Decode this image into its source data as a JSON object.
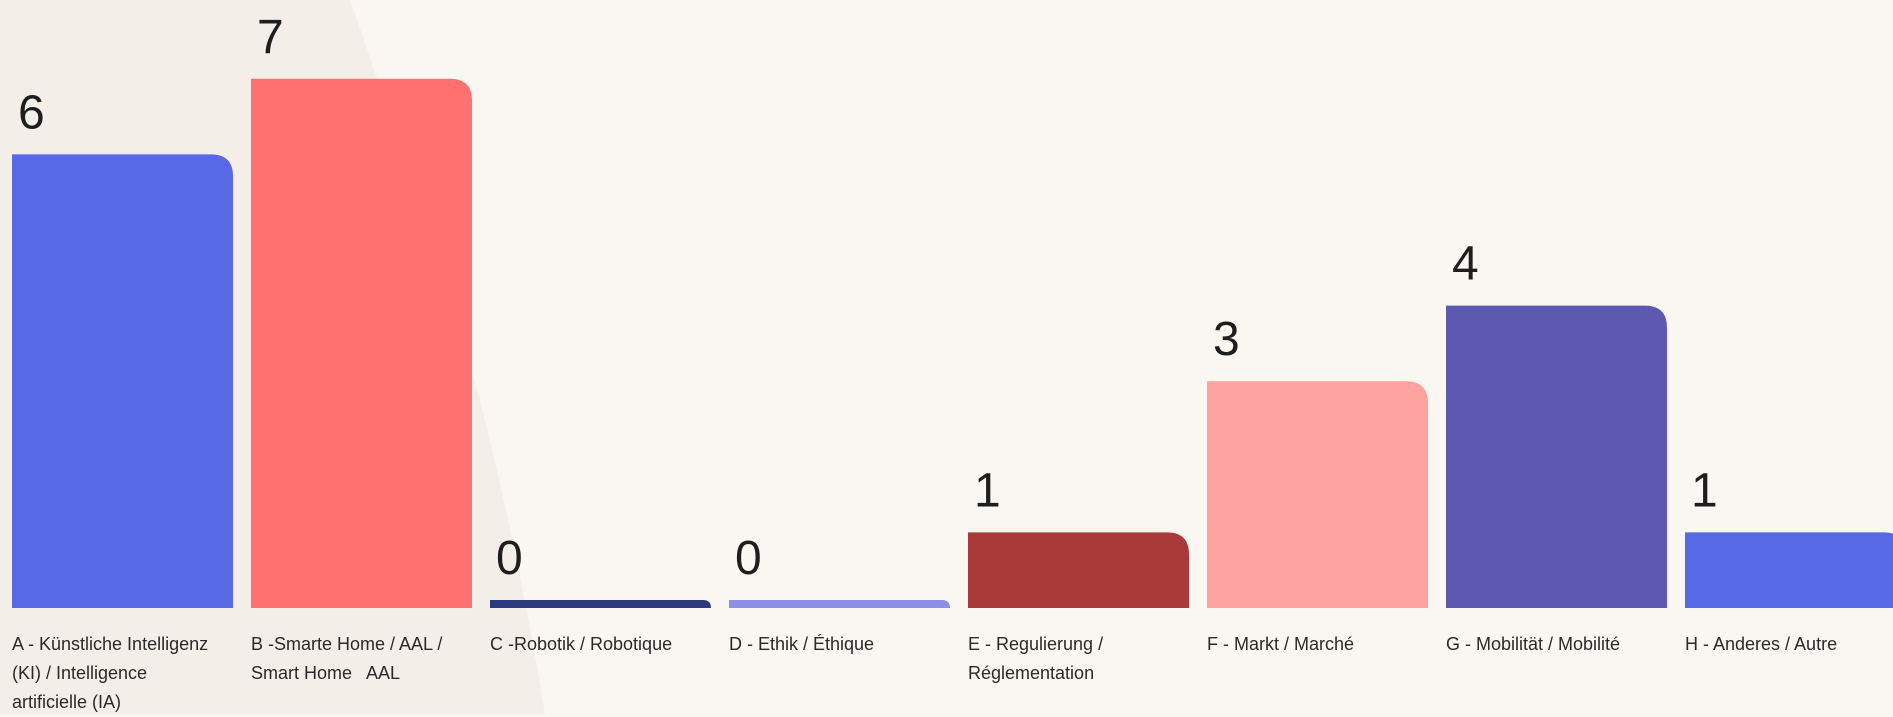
{
  "chart_data": {
    "type": "bar",
    "categories": [
      "A - Künstliche Intelligenz (KI) / Intelligence artificielle (IA)",
      "B -Smarte Home / AAL / Smart Home   AAL",
      "C -Robotik / Robotique",
      "D - Ethik / Éthique",
      "E - Regulierung / Réglementation",
      "F - Markt / Marché",
      "G - Mobilität / Mobilité",
      "H - Anderes / Autre"
    ],
    "values": [
      6,
      7,
      0,
      0,
      1,
      3,
      4,
      1
    ],
    "colors": [
      "#5769e6",
      "#ff7070",
      "#2e3a80",
      "#8b8fe6",
      "#a83a3a",
      "#ffa3a0",
      "#5e59b0",
      "#5769e6"
    ]
  }
}
